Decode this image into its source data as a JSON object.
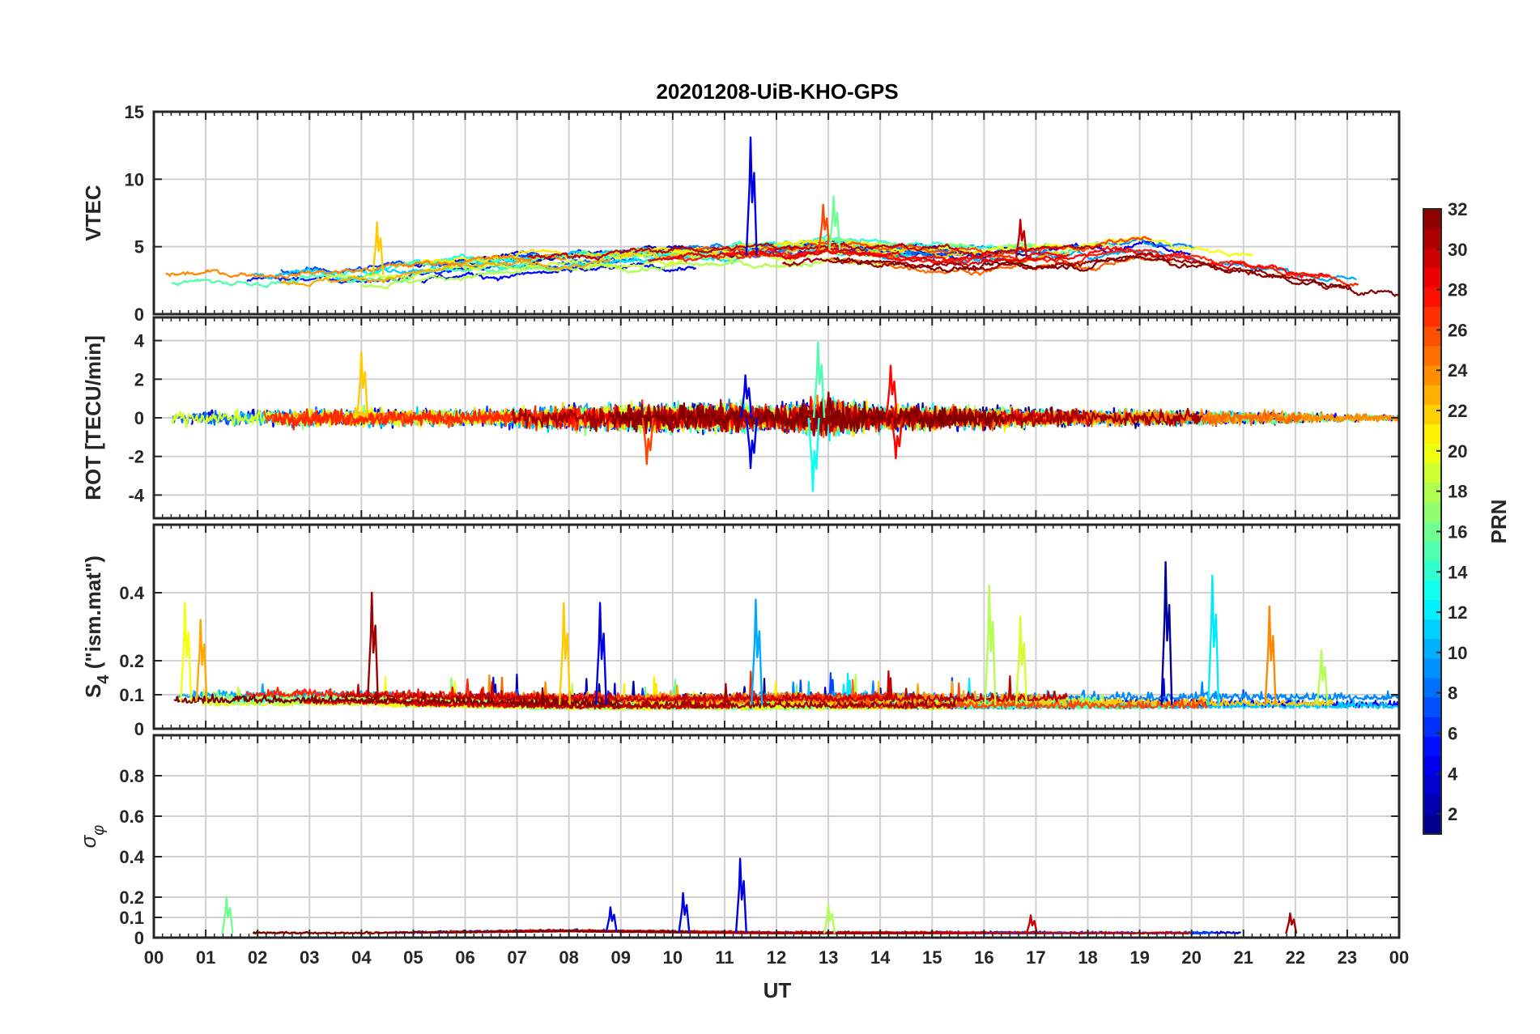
{
  "colors": {
    "axis": "#262626",
    "grid": "#d0d0d0",
    "background": "#ffffff"
  },
  "chart_data": [
    {
      "type": "line",
      "title": "20201208-UiB-KHO-GPS",
      "ylabel": "VTEC",
      "ylim": [
        0,
        15
      ],
      "yticks": [
        0,
        5,
        10,
        15
      ],
      "xlim": [
        0,
        24
      ],
      "grid": true,
      "series_encoding": "line color = PRN (jet colormap)",
      "prn_count": 32,
      "approx_profile": {
        "hours": [
          0,
          2,
          4,
          6,
          8,
          10,
          11,
          12,
          13,
          14,
          16,
          18,
          19,
          20,
          22,
          24
        ],
        "typical_value": [
          2.5,
          2.6,
          2.8,
          3.6,
          3.8,
          4.2,
          4.3,
          4.4,
          4.8,
          4.4,
          4.1,
          4.4,
          5.0,
          4.3,
          3.2,
          2.0
        ]
      },
      "events": [
        {
          "hour": 11.5,
          "value": 13.1,
          "prn": 4
        },
        {
          "hour": 12.9,
          "value": 8.1,
          "prn": 26
        },
        {
          "hour": 13.1,
          "value": 8.7,
          "prn": 16
        },
        {
          "hour": 4.3,
          "value": 6.8,
          "prn": 22
        },
        {
          "hour": 16.7,
          "value": 7.0,
          "prn": 30
        }
      ]
    },
    {
      "type": "line",
      "ylabel": "ROT [TECU/min]",
      "ylim": [
        -5.2,
        5.2
      ],
      "yticks": [
        -4,
        -2,
        0,
        2,
        4
      ],
      "xlim": [
        0,
        24
      ],
      "grid": true,
      "approx_profile": {
        "hours": [
          0,
          4,
          6,
          8,
          10,
          11,
          12,
          13,
          14,
          16,
          18,
          20,
          22,
          24
        ],
        "typical_amplitude": [
          0.5,
          0.6,
          0.5,
          0.8,
          0.9,
          1.0,
          0.8,
          1.3,
          0.8,
          0.7,
          0.5,
          0.5,
          0.4,
          0.2
        ]
      },
      "events": [
        {
          "hour": 12.8,
          "value": 3.9,
          "prn": 15
        },
        {
          "hour": 12.7,
          "value": -3.8,
          "prn": 13
        },
        {
          "hour": 4.0,
          "value": 3.4,
          "prn": 22
        },
        {
          "hour": 11.5,
          "value": -2.6,
          "prn": 4
        },
        {
          "hour": 11.4,
          "value": 2.2,
          "prn": 4
        },
        {
          "hour": 9.5,
          "value": -2.4,
          "prn": 26
        },
        {
          "hour": 14.2,
          "value": 2.7,
          "prn": 28
        },
        {
          "hour": 14.3,
          "value": -2.1,
          "prn": 28
        }
      ]
    },
    {
      "type": "line",
      "ylabel": "S",
      "ylabel_subscript": "4",
      "ylabel_suffix": " (\"ism.mat\")",
      "ylim": [
        0,
        0.6
      ],
      "yticks": [
        0,
        0.1,
        0.2,
        0.4
      ],
      "ytick_labels": [
        "0",
        "0.1",
        "0.2",
        "0.4"
      ],
      "xlim": [
        0,
        24
      ],
      "grid": true,
      "approx_profile": {
        "hours": [
          0,
          4,
          8,
          12,
          16,
          20,
          24
        ],
        "typical_value": [
          0.08,
          0.08,
          0.07,
          0.07,
          0.07,
          0.07,
          0.07
        ]
      },
      "events": [
        {
          "hour": 19.5,
          "value": 0.49,
          "prn": 2
        },
        {
          "hour": 20.4,
          "value": 0.45,
          "prn": 12
        },
        {
          "hour": 16.1,
          "value": 0.42,
          "prn": 18
        },
        {
          "hour": 4.2,
          "value": 0.4,
          "prn": 31
        },
        {
          "hour": 11.6,
          "value": 0.38,
          "prn": 10
        },
        {
          "hour": 8.6,
          "value": 0.37,
          "prn": 4
        },
        {
          "hour": 0.6,
          "value": 0.37,
          "prn": 20
        },
        {
          "hour": 7.9,
          "value": 0.37,
          "prn": 22
        },
        {
          "hour": 21.5,
          "value": 0.36,
          "prn": 24
        },
        {
          "hour": 0.9,
          "value": 0.32,
          "prn": 23
        },
        {
          "hour": 16.7,
          "value": 0.33,
          "prn": 19
        },
        {
          "hour": 22.5,
          "value": 0.23,
          "prn": 18
        }
      ]
    },
    {
      "type": "line",
      "ylabel": "σ",
      "ylabel_subscript": "φ",
      "ylim": [
        0,
        1
      ],
      "yticks": [
        0,
        0.1,
        0.2,
        0.4,
        0.6,
        0.8
      ],
      "ytick_labels": [
        "0",
        "0.1",
        "0.2",
        "0.4",
        "0.6",
        "0.8"
      ],
      "xlim": [
        0,
        24
      ],
      "grid": true,
      "xlabel": "UT",
      "xticks": [
        0,
        1,
        2,
        3,
        4,
        5,
        6,
        7,
        8,
        9,
        10,
        11,
        12,
        13,
        14,
        15,
        16,
        17,
        18,
        19,
        20,
        21,
        22,
        23,
        24
      ],
      "xtick_labels": [
        "00",
        "01",
        "02",
        "03",
        "04",
        "05",
        "06",
        "07",
        "08",
        "09",
        "10",
        "11",
        "12",
        "13",
        "14",
        "15",
        "16",
        "17",
        "18",
        "19",
        "20",
        "21",
        "22",
        "23",
        "00"
      ],
      "approx_profile": {
        "hours": [
          0,
          4,
          8,
          12,
          16,
          20,
          24
        ],
        "typical_value": [
          0.02,
          0.02,
          0.03,
          0.02,
          0.02,
          0.02,
          0.02
        ]
      },
      "events": [
        {
          "hour": 11.3,
          "value": 0.39,
          "prn": 4
        },
        {
          "hour": 10.2,
          "value": 0.22,
          "prn": 4
        },
        {
          "hour": 1.4,
          "value": 0.2,
          "prn": 16
        },
        {
          "hour": 8.8,
          "value": 0.15,
          "prn": 4
        },
        {
          "hour": 13.0,
          "value": 0.16,
          "prn": 18
        },
        {
          "hour": 21.9,
          "value": 0.12,
          "prn": 31
        },
        {
          "hour": 16.9,
          "value": 0.11,
          "prn": 30
        }
      ]
    }
  ],
  "colorbar": {
    "label": "PRN",
    "min": 1,
    "max": 32,
    "ticks": [
      2,
      4,
      6,
      8,
      10,
      12,
      14,
      16,
      18,
      20,
      22,
      24,
      26,
      28,
      30,
      32
    ],
    "colormap": "jet"
  }
}
